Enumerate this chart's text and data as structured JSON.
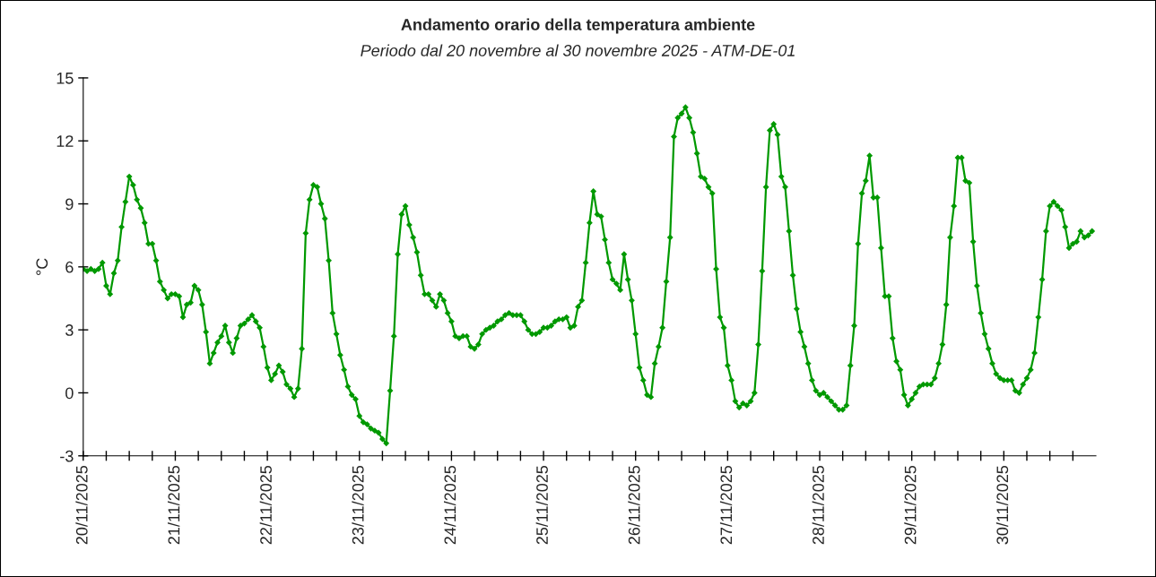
{
  "chart_data": {
    "type": "line",
    "title": "Andamento orario della temperatura ambiente",
    "subtitle": "Periodo dal 20 novembre al 30 novembre 2025 - ATM-DE-01",
    "ylabel": "°C",
    "x": [
      "2025-11-20T00:00",
      "2025-11-20T01:00",
      "2025-11-20T02:00",
      "2025-11-20T03:00",
      "2025-11-20T04:00",
      "2025-11-20T05:00",
      "2025-11-20T06:00",
      "2025-11-20T07:00",
      "2025-11-20T08:00",
      "2025-11-20T09:00",
      "2025-11-20T10:00",
      "2025-11-20T11:00",
      "2025-11-20T12:00",
      "2025-11-20T13:00",
      "2025-11-20T14:00",
      "2025-11-20T15:00",
      "2025-11-20T16:00",
      "2025-11-20T17:00",
      "2025-11-20T18:00",
      "2025-11-20T19:00",
      "2025-11-20T20:00",
      "2025-11-20T21:00",
      "2025-11-20T22:00",
      "2025-11-20T23:00",
      "2025-11-21T00:00",
      "2025-11-21T01:00",
      "2025-11-21T02:00",
      "2025-11-21T03:00",
      "2025-11-21T04:00",
      "2025-11-21T05:00",
      "2025-11-21T06:00",
      "2025-11-21T07:00",
      "2025-11-21T08:00",
      "2025-11-21T09:00",
      "2025-11-21T10:00",
      "2025-11-21T11:00",
      "2025-11-21T12:00",
      "2025-11-21T13:00",
      "2025-11-21T14:00",
      "2025-11-21T15:00",
      "2025-11-21T16:00",
      "2025-11-21T17:00",
      "2025-11-21T18:00",
      "2025-11-21T19:00",
      "2025-11-21T20:00",
      "2025-11-21T21:00",
      "2025-11-21T22:00",
      "2025-11-21T23:00",
      "2025-11-22T00:00",
      "2025-11-22T01:00",
      "2025-11-22T02:00",
      "2025-11-22T03:00",
      "2025-11-22T04:00",
      "2025-11-22T05:00",
      "2025-11-22T06:00",
      "2025-11-22T07:00",
      "2025-11-22T08:00",
      "2025-11-22T09:00",
      "2025-11-22T10:00",
      "2025-11-22T11:00",
      "2025-11-22T12:00",
      "2025-11-22T13:00",
      "2025-11-22T14:00",
      "2025-11-22T15:00",
      "2025-11-22T16:00",
      "2025-11-22T17:00",
      "2025-11-22T18:00",
      "2025-11-22T19:00",
      "2025-11-22T20:00",
      "2025-11-22T21:00",
      "2025-11-22T22:00",
      "2025-11-22T23:00",
      "2025-11-23T00:00",
      "2025-11-23T01:00",
      "2025-11-23T02:00",
      "2025-11-23T03:00",
      "2025-11-23T04:00",
      "2025-11-23T05:00",
      "2025-11-23T06:00",
      "2025-11-23T07:00",
      "2025-11-23T08:00",
      "2025-11-23T09:00",
      "2025-11-23T10:00",
      "2025-11-23T11:00",
      "2025-11-23T12:00",
      "2025-11-23T13:00",
      "2025-11-23T14:00",
      "2025-11-23T15:00",
      "2025-11-23T16:00",
      "2025-11-23T17:00",
      "2025-11-23T18:00",
      "2025-11-23T19:00",
      "2025-11-23T20:00",
      "2025-11-23T21:00",
      "2025-11-23T22:00",
      "2025-11-23T23:00",
      "2025-11-24T00:00",
      "2025-11-24T01:00",
      "2025-11-24T02:00",
      "2025-11-24T03:00",
      "2025-11-24T04:00",
      "2025-11-24T05:00",
      "2025-11-24T06:00",
      "2025-11-24T07:00",
      "2025-11-24T08:00",
      "2025-11-24T09:00",
      "2025-11-24T10:00",
      "2025-11-24T11:00",
      "2025-11-24T12:00",
      "2025-11-24T13:00",
      "2025-11-24T14:00",
      "2025-11-24T15:00",
      "2025-11-24T16:00",
      "2025-11-24T17:00",
      "2025-11-24T18:00",
      "2025-11-24T19:00",
      "2025-11-24T20:00",
      "2025-11-24T21:00",
      "2025-11-24T22:00",
      "2025-11-24T23:00",
      "2025-11-25T00:00",
      "2025-11-25T01:00",
      "2025-11-25T02:00",
      "2025-11-25T03:00",
      "2025-11-25T04:00",
      "2025-11-25T05:00",
      "2025-11-25T06:00",
      "2025-11-25T07:00",
      "2025-11-25T08:00",
      "2025-11-25T09:00",
      "2025-11-25T10:00",
      "2025-11-25T11:00",
      "2025-11-25T12:00",
      "2025-11-25T13:00",
      "2025-11-25T14:00",
      "2025-11-25T15:00",
      "2025-11-25T16:00",
      "2025-11-25T17:00",
      "2025-11-25T18:00",
      "2025-11-25T19:00",
      "2025-11-25T20:00",
      "2025-11-25T21:00",
      "2025-11-25T22:00",
      "2025-11-25T23:00",
      "2025-11-26T00:00",
      "2025-11-26T01:00",
      "2025-11-26T02:00",
      "2025-11-26T03:00",
      "2025-11-26T04:00",
      "2025-11-26T05:00",
      "2025-11-26T06:00",
      "2025-11-26T07:00",
      "2025-11-26T08:00",
      "2025-11-26T09:00",
      "2025-11-26T10:00",
      "2025-11-26T11:00",
      "2025-11-26T12:00",
      "2025-11-26T13:00",
      "2025-11-26T14:00",
      "2025-11-26T15:00",
      "2025-11-26T16:00",
      "2025-11-26T17:00",
      "2025-11-26T18:00",
      "2025-11-26T19:00",
      "2025-11-26T20:00",
      "2025-11-26T21:00",
      "2025-11-26T22:00",
      "2025-11-26T23:00",
      "2025-11-27T00:00",
      "2025-11-27T01:00",
      "2025-11-27T02:00",
      "2025-11-27T03:00",
      "2025-11-27T04:00",
      "2025-11-27T05:00",
      "2025-11-27T06:00",
      "2025-11-27T07:00",
      "2025-11-27T08:00",
      "2025-11-27T09:00",
      "2025-11-27T10:00",
      "2025-11-27T11:00",
      "2025-11-27T12:00",
      "2025-11-27T13:00",
      "2025-11-27T14:00",
      "2025-11-27T15:00",
      "2025-11-27T16:00",
      "2025-11-27T17:00",
      "2025-11-27T18:00",
      "2025-11-27T19:00",
      "2025-11-27T20:00",
      "2025-11-27T21:00",
      "2025-11-27T22:00",
      "2025-11-27T23:00",
      "2025-11-28T00:00",
      "2025-11-28T01:00",
      "2025-11-28T02:00",
      "2025-11-28T03:00",
      "2025-11-28T04:00",
      "2025-11-28T05:00",
      "2025-11-28T06:00",
      "2025-11-28T07:00",
      "2025-11-28T08:00",
      "2025-11-28T09:00",
      "2025-11-28T10:00",
      "2025-11-28T11:00",
      "2025-11-28T12:00",
      "2025-11-28T13:00",
      "2025-11-28T14:00",
      "2025-11-28T15:00",
      "2025-11-28T16:00",
      "2025-11-28T17:00",
      "2025-11-28T18:00",
      "2025-11-28T19:00",
      "2025-11-28T20:00",
      "2025-11-28T21:00",
      "2025-11-28T22:00",
      "2025-11-28T23:00",
      "2025-11-29T00:00",
      "2025-11-29T01:00",
      "2025-11-29T02:00",
      "2025-11-29T03:00",
      "2025-11-29T04:00",
      "2025-11-29T05:00",
      "2025-11-29T06:00",
      "2025-11-29T07:00",
      "2025-11-29T08:00",
      "2025-11-29T09:00",
      "2025-11-29T10:00",
      "2025-11-29T11:00",
      "2025-11-29T12:00",
      "2025-11-29T13:00",
      "2025-11-29T14:00",
      "2025-11-29T15:00",
      "2025-11-29T16:00",
      "2025-11-29T17:00",
      "2025-11-29T18:00",
      "2025-11-29T19:00",
      "2025-11-29T20:00",
      "2025-11-29T21:00",
      "2025-11-29T22:00",
      "2025-11-29T23:00",
      "2025-11-30T00:00",
      "2025-11-30T01:00",
      "2025-11-30T02:00",
      "2025-11-30T03:00",
      "2025-11-30T04:00",
      "2025-11-30T05:00",
      "2025-11-30T06:00",
      "2025-11-30T07:00",
      "2025-11-30T08:00",
      "2025-11-30T09:00",
      "2025-11-30T10:00",
      "2025-11-30T11:00",
      "2025-11-30T12:00",
      "2025-11-30T13:00",
      "2025-11-30T14:00",
      "2025-11-30T15:00",
      "2025-11-30T16:00",
      "2025-11-30T17:00",
      "2025-11-30T18:00",
      "2025-11-30T19:00",
      "2025-11-30T20:00",
      "2025-11-30T21:00",
      "2025-11-30T22:00",
      "2025-11-30T23:00"
    ],
    "series": [
      {
        "color": "#009900",
        "values": [
          5.9,
          5.8,
          5.9,
          5.8,
          5.9,
          6.2,
          5.1,
          4.7,
          5.7,
          6.3,
          7.9,
          9.1,
          10.3,
          9.9,
          9.2,
          8.8,
          8.1,
          7.1,
          7.1,
          6.3,
          5.3,
          4.9,
          4.5,
          4.7,
          4.7,
          4.6,
          3.6,
          4.2,
          4.3,
          5.1,
          4.9,
          4.2,
          2.9,
          1.4,
          1.9,
          2.4,
          2.7,
          3.2,
          2.4,
          1.9,
          2.6,
          3.2,
          3.3,
          3.5,
          3.7,
          3.4,
          3.1,
          2.2,
          1.2,
          0.6,
          0.9,
          1.3,
          1.0,
          0.4,
          0.2,
          -0.2,
          0.2,
          2.1,
          7.6,
          9.2,
          9.9,
          9.8,
          9.0,
          8.3,
          6.3,
          3.8,
          2.8,
          1.8,
          1.1,
          0.3,
          -0.1,
          -0.3,
          -1.1,
          -1.4,
          -1.5,
          -1.7,
          -1.8,
          -1.9,
          -2.2,
          -2.4,
          0.1,
          2.7,
          6.6,
          8.5,
          8.9,
          8.0,
          7.4,
          6.7,
          5.6,
          4.7,
          4.7,
          4.4,
          4.1,
          4.7,
          4.4,
          3.8,
          3.4,
          2.7,
          2.6,
          2.7,
          2.7,
          2.2,
          2.1,
          2.3,
          2.8,
          3.0,
          3.1,
          3.2,
          3.4,
          3.5,
          3.7,
          3.8,
          3.7,
          3.7,
          3.7,
          3.4,
          3.0,
          2.8,
          2.8,
          2.9,
          3.1,
          3.1,
          3.2,
          3.4,
          3.5,
          3.5,
          3.6,
          3.1,
          3.2,
          4.1,
          4.4,
          6.2,
          8.1,
          9.6,
          8.5,
          8.4,
          7.3,
          6.2,
          5.4,
          5.2,
          4.9,
          6.6,
          5.4,
          4.4,
          2.8,
          1.2,
          0.6,
          -0.1,
          -0.2,
          1.4,
          2.2,
          3.1,
          5.3,
          7.4,
          12.2,
          13.1,
          13.3,
          13.6,
          13.1,
          12.4,
          11.4,
          10.3,
          10.2,
          9.8,
          9.5,
          5.9,
          3.6,
          3.1,
          1.3,
          0.6,
          -0.4,
          -0.7,
          -0.5,
          -0.6,
          -0.4,
          0.0,
          2.3,
          5.8,
          9.8,
          12.5,
          12.8,
          12.3,
          10.3,
          9.8,
          7.7,
          5.6,
          4.0,
          2.9,
          2.2,
          1.4,
          0.6,
          0.1,
          -0.1,
          0.0,
          -0.2,
          -0.4,
          -0.6,
          -0.8,
          -0.8,
          -0.6,
          1.3,
          3.2,
          7.1,
          9.5,
          10.1,
          11.3,
          9.3,
          9.3,
          6.9,
          4.6,
          4.6,
          2.6,
          1.5,
          1.1,
          -0.1,
          -0.6,
          -0.3,
          0.0,
          0.3,
          0.4,
          0.4,
          0.4,
          0.7,
          1.4,
          2.3,
          4.2,
          7.4,
          8.9,
          11.2,
          11.2,
          10.1,
          10.0,
          7.2,
          5.1,
          3.8,
          2.8,
          2.1,
          1.4,
          0.9,
          0.7,
          0.6,
          0.6,
          0.6,
          0.1,
          0.0,
          0.4,
          0.7,
          1.1,
          1.9,
          3.6,
          5.4,
          7.7,
          8.9,
          9.1,
          8.9,
          8.7,
          7.9,
          6.9,
          7.1,
          7.2,
          7.7,
          7.4,
          7.5,
          7.7
        ]
      }
    ],
    "xlim": [
      "2025-11-20T00:00",
      "2025-12-01T00:00"
    ],
    "xticks": [
      {
        "value": "2025-11-20T00:00",
        "label": "20/11/2025"
      },
      {
        "value": "2025-11-20T06:00",
        "label": null
      },
      {
        "value": "2025-11-20T12:00",
        "label": null
      },
      {
        "value": "2025-11-20T18:00",
        "label": null
      },
      {
        "value": "2025-11-21T00:00",
        "label": "21/11/2025"
      },
      {
        "value": "2025-11-21T06:00",
        "label": null
      },
      {
        "value": "2025-11-21T12:00",
        "label": null
      },
      {
        "value": "2025-11-21T18:00",
        "label": null
      },
      {
        "value": "2025-11-22T00:00",
        "label": "22/11/2025"
      },
      {
        "value": "2025-11-22T06:00",
        "label": null
      },
      {
        "value": "2025-11-22T12:00",
        "label": null
      },
      {
        "value": "2025-11-22T18:00",
        "label": null
      },
      {
        "value": "2025-11-23T00:00",
        "label": "23/11/2025"
      },
      {
        "value": "2025-11-23T06:00",
        "label": null
      },
      {
        "value": "2025-11-23T12:00",
        "label": null
      },
      {
        "value": "2025-11-23T18:00",
        "label": null
      },
      {
        "value": "2025-11-24T00:00",
        "label": "24/11/2025"
      },
      {
        "value": "2025-11-24T06:00",
        "label": null
      },
      {
        "value": "2025-11-24T12:00",
        "label": null
      },
      {
        "value": "2025-11-24T18:00",
        "label": null
      },
      {
        "value": "2025-11-25T00:00",
        "label": "25/11/2025"
      },
      {
        "value": "2025-11-25T06:00",
        "label": null
      },
      {
        "value": "2025-11-25T12:00",
        "label": null
      },
      {
        "value": "2025-11-25T18:00",
        "label": null
      },
      {
        "value": "2025-11-26T00:00",
        "label": "26/11/2025"
      },
      {
        "value": "2025-11-26T06:00",
        "label": null
      },
      {
        "value": "2025-11-26T12:00",
        "label": null
      },
      {
        "value": "2025-11-26T18:00",
        "label": null
      },
      {
        "value": "2025-11-27T00:00",
        "label": "27/11/2025"
      },
      {
        "value": "2025-11-27T06:00",
        "label": null
      },
      {
        "value": "2025-11-27T12:00",
        "label": null
      },
      {
        "value": "2025-11-27T18:00",
        "label": null
      },
      {
        "value": "2025-11-28T00:00",
        "label": "28/11/2025"
      },
      {
        "value": "2025-11-28T06:00",
        "label": null
      },
      {
        "value": "2025-11-28T12:00",
        "label": null
      },
      {
        "value": "2025-11-28T18:00",
        "label": null
      },
      {
        "value": "2025-11-29T00:00",
        "label": "29/11/2025"
      },
      {
        "value": "2025-11-29T06:00",
        "label": null
      },
      {
        "value": "2025-11-29T12:00",
        "label": null
      },
      {
        "value": "2025-11-29T18:00",
        "label": null
      },
      {
        "value": "2025-11-30T00:00",
        "label": "30/11/2025"
      },
      {
        "value": "2025-11-30T06:00",
        "label": null
      },
      {
        "value": "2025-11-30T12:00",
        "label": null
      },
      {
        "value": "2025-11-30T18:00",
        "label": null
      }
    ],
    "ylim": [
      -3,
      15
    ],
    "yticks": [
      -3,
      0,
      3,
      6,
      9,
      12,
      15
    ],
    "grid": false,
    "legend": false,
    "marker": "diamond",
    "line_style": "solid"
  }
}
